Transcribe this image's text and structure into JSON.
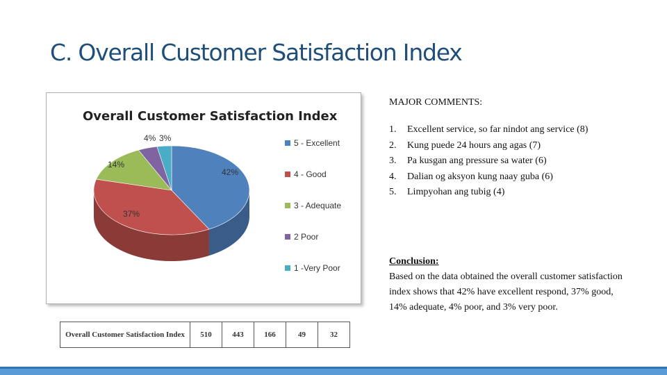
{
  "slide": {
    "title": "C. Overall Customer Satisfaction Index"
  },
  "chart_data": {
    "type": "pie",
    "title": "Overall Customer Satisfaction Index",
    "legend_position": "right",
    "categories": [
      "5 - Excellent",
      "4 - Good",
      "3 - Adequate",
      "2  Poor",
      "1 -Very Poor"
    ],
    "values": [
      42,
      37,
      14,
      4,
      3
    ],
    "labels": [
      "42%",
      "37%",
      "14%",
      "4%",
      "3%"
    ],
    "colors": [
      "#4f81bd",
      "#c0504d",
      "#9bbb59",
      "#8064a2",
      "#4bacc6"
    ]
  },
  "table": {
    "row_label": "Overall Customer Satisfaction Index",
    "values": [
      "510",
      "443",
      "166",
      "49",
      "32"
    ]
  },
  "comments": {
    "title": "MAJOR COMMENTS:",
    "items": [
      {
        "num": "1.",
        "text": "Excellent service, so far nindot ang service (8)"
      },
      {
        "num": "2.",
        "text": "Kung puede 24 hours ang agas (7)"
      },
      {
        "num": "3.",
        "text": "Pa kusgan ang pressure sa water (6)"
      },
      {
        "num": "4.",
        "text": "Dalian og aksyon kung naay guba (6)"
      },
      {
        "num": "5.",
        "text": "Limpyohan ang tubig (4)"
      }
    ]
  },
  "conclusion": {
    "heading": "Conclusion:",
    "text": "Based on the data obtained the overall customer satisfaction index shows that 42% have excellent respond, 37%  good, 14% adequate, 4%  poor, and 3% very poor."
  }
}
